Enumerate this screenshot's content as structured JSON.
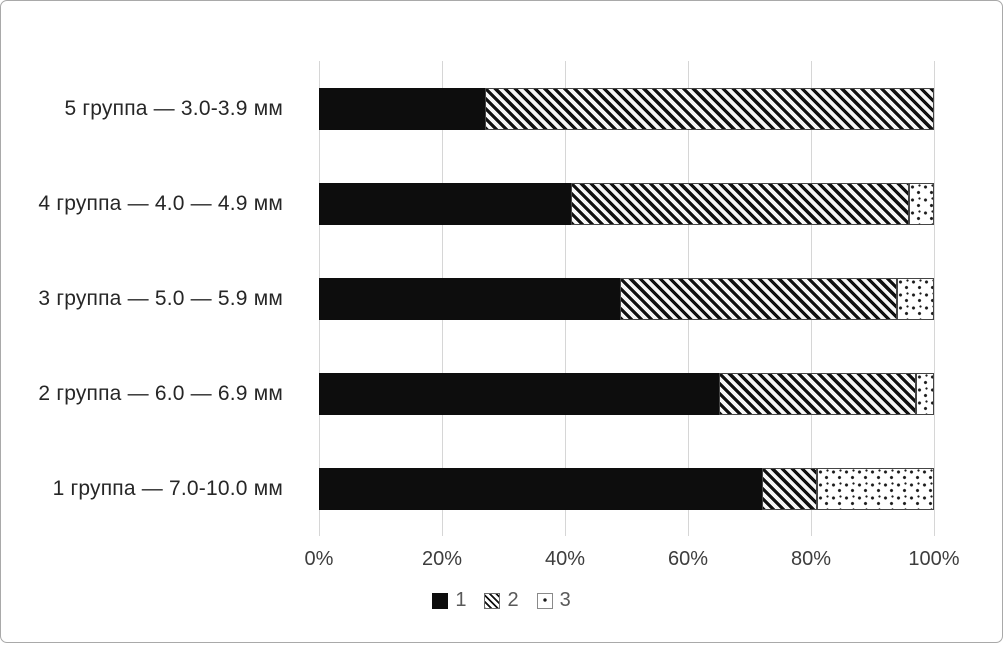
{
  "colors": {
    "foreground": "#0d0d0d",
    "background": "#ffffff",
    "gridline": "#d6d6d6",
    "category_text": "#262626",
    "axis_text": "#3d3d3d",
    "legend_text": "#595959",
    "figure_border": "#a9a9a9"
  },
  "chart_data": {
    "type": "bar",
    "orientation": "horizontal",
    "stacked": true,
    "percent_stacked": true,
    "title": "",
    "xlabel": "",
    "ylabel": "",
    "xlim": [
      0,
      100
    ],
    "grid": "vertical",
    "legend_position": "bottom",
    "categories": [
      "5 группа — 3.0-3.9 мм",
      "4 группа — 4.0 — 4.9 мм",
      "3 группа — 5.0 — 5.9 мм",
      "2 группа — 6.0 — 6.9 мм",
      "1 группа — 7.0-10.0 мм"
    ],
    "series": [
      {
        "name": "1",
        "pattern": "solid",
        "values": [
          27,
          41,
          49,
          65,
          72
        ]
      },
      {
        "name": "2",
        "pattern": "hatch",
        "values": [
          73,
          55,
          45,
          32,
          9
        ]
      },
      {
        "name": "3",
        "pattern": "dots",
        "values": [
          0,
          4,
          6,
          3,
          19
        ]
      }
    ],
    "x_tick_values": [
      0,
      20,
      40,
      60,
      80,
      100
    ],
    "x_tick_labels": [
      "0%",
      "20%",
      "40%",
      "60%",
      "80%",
      "100%"
    ],
    "legend": [
      {
        "label": "1",
        "pattern": "solid"
      },
      {
        "label": "2",
        "pattern": "hatch"
      },
      {
        "label": "3",
        "pattern": "dots"
      }
    ]
  }
}
